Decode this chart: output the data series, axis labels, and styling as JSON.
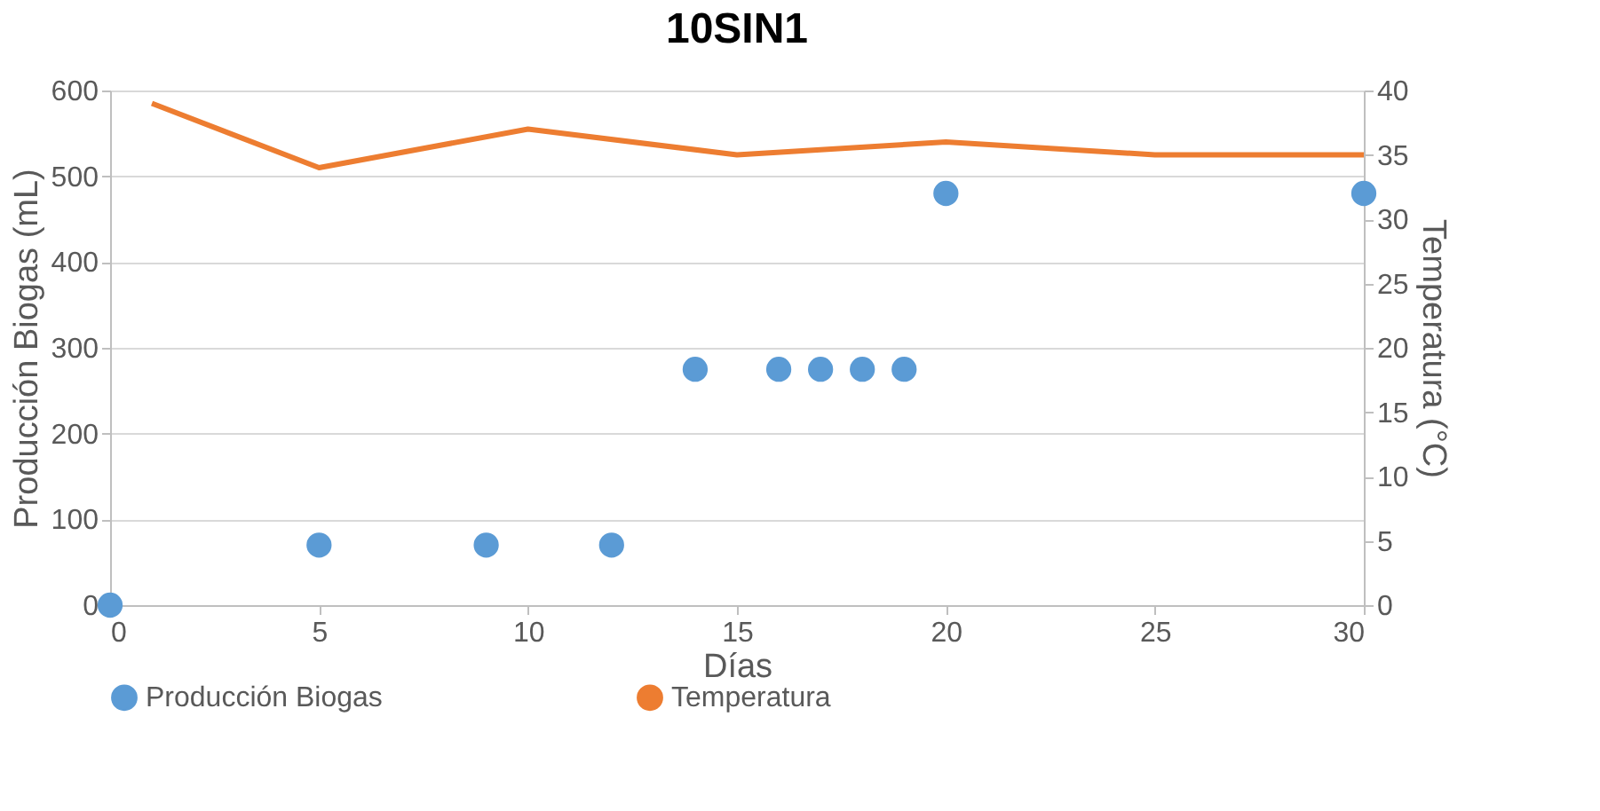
{
  "chart_data": {
    "type": "scatter",
    "title": "10SIN1",
    "xlabel": "Días",
    "ylabel": "Producción Biogas (mL)",
    "y2label": "Temperatura (°C)",
    "xlim": [
      0,
      30
    ],
    "xticks": [
      0,
      5,
      10,
      15,
      20,
      25,
      30
    ],
    "ylim": [
      0,
      600
    ],
    "yticks": [
      0,
      100,
      200,
      300,
      400,
      500,
      600
    ],
    "y2lim": [
      0,
      40
    ],
    "y2ticks": [
      0,
      5,
      10,
      15,
      20,
      25,
      30,
      35,
      40
    ],
    "grid": "y",
    "legend": "bottom",
    "series": [
      {
        "name": "Producción Biogas",
        "marker": "circle",
        "color": "#5b9bd5",
        "x": [
          0,
          5,
          9,
          12,
          14,
          16,
          17,
          18,
          19,
          20,
          30
        ],
        "values": [
          0,
          70,
          70,
          70,
          275,
          275,
          275,
          275,
          275,
          480,
          480
        ]
      },
      {
        "name": "Temperatura",
        "type": "line",
        "axis": "y2",
        "color": "#ed7d31",
        "x": [
          1,
          5,
          10,
          15,
          20,
          25,
          30
        ],
        "values": [
          39,
          34,
          37,
          35,
          36,
          35,
          35
        ]
      }
    ]
  }
}
